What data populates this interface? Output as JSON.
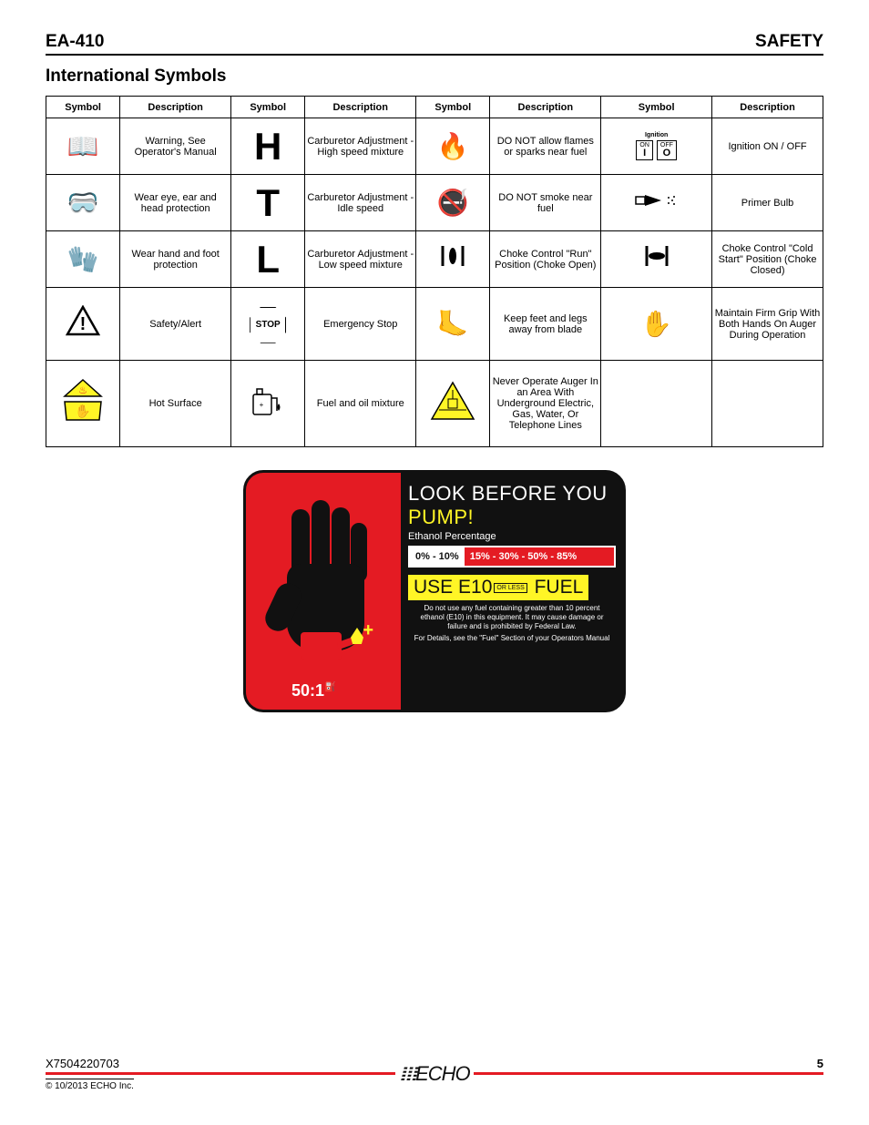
{
  "header": {
    "left": "EA-410",
    "right": "SAFETY"
  },
  "section_title": "International Symbols",
  "table": {
    "headers": [
      "Symbol",
      "Description",
      "Symbol",
      "Description",
      "Symbol",
      "Description",
      "Symbol",
      "Description"
    ],
    "rows": [
      {
        "cells": [
          {
            "t": "sym",
            "v": "📖"
          },
          {
            "t": "desc",
            "v": "Warning, See Operator's Manual"
          },
          {
            "t": "big",
            "v": "H"
          },
          {
            "t": "desc",
            "v": "Carburetor Adjustment - High speed mixture"
          },
          {
            "t": "sym",
            "v": "🔥"
          },
          {
            "t": "desc",
            "v": "DO NOT allow flames or sparks near fuel"
          },
          {
            "t": "ign",
            "v": ""
          },
          {
            "t": "desc",
            "v": "Ignition ON / OFF"
          }
        ]
      },
      {
        "cells": [
          {
            "t": "sym",
            "v": "🥽"
          },
          {
            "t": "desc",
            "v": "Wear eye, ear and head protection"
          },
          {
            "t": "big",
            "v": "T"
          },
          {
            "t": "desc",
            "v": "Carburetor Adjustment - Idle speed"
          },
          {
            "t": "sym",
            "v": "🚭"
          },
          {
            "t": "desc",
            "v": "DO NOT smoke near fuel"
          },
          {
            "t": "primer",
            "v": ""
          },
          {
            "t": "desc",
            "v": "Primer Bulb"
          }
        ]
      },
      {
        "cells": [
          {
            "t": "sym",
            "v": "🧤"
          },
          {
            "t": "desc",
            "v": "Wear hand and foot protection"
          },
          {
            "t": "big",
            "v": "L"
          },
          {
            "t": "desc",
            "v": "Carburetor Adjustment - Low speed mixture"
          },
          {
            "t": "choke1",
            "v": ""
          },
          {
            "t": "desc",
            "v": "Choke Control \"Run\" Position (Choke Open)"
          },
          {
            "t": "choke2",
            "v": ""
          },
          {
            "t": "desc",
            "v": "Choke Control \"Cold Start\" Position (Choke Closed)"
          }
        ]
      },
      {
        "tall": true,
        "cells": [
          {
            "t": "warn",
            "v": ""
          },
          {
            "t": "desc",
            "v": "Safety/Alert"
          },
          {
            "t": "stop",
            "v": "STOP"
          },
          {
            "t": "desc",
            "v": "Emergency Stop"
          },
          {
            "t": "sym",
            "v": "🦶"
          },
          {
            "t": "desc",
            "v": "Keep feet and legs away from blade"
          },
          {
            "t": "sym",
            "v": "✋"
          },
          {
            "t": "desc",
            "v": "Maintain Firm Grip With Both Hands On Auger During Operation"
          }
        ]
      },
      {
        "vtall": true,
        "cells": [
          {
            "t": "hot",
            "v": ""
          },
          {
            "t": "desc",
            "v": "Hot Surface"
          },
          {
            "t": "fuel",
            "v": ""
          },
          {
            "t": "desc",
            "v": "Fuel and oil mixture"
          },
          {
            "t": "ug",
            "v": ""
          },
          {
            "t": "desc",
            "v": "Never Operate Auger In an Area With Underground Electric, Gas, Water, Or Telephone Lines"
          },
          {
            "t": "empty",
            "v": ""
          },
          {
            "t": "empty",
            "v": ""
          }
        ]
      }
    ]
  },
  "label": {
    "look": "LOOK BEFORE YOU ",
    "pump": "PUMP!",
    "ethanol": "Ethanol Percentage",
    "ok_pct": "0% - 10%",
    "bad_pct": "15% - 30% - 50% - 85%",
    "use_a": "USE E10",
    "orless": "OR LESS",
    "use_b": " FUEL",
    "fine1": "Do not use any fuel containing greater than 10 percent ethanol (E10) in this equipment. It may cause damage or failure and is prohibited by Federal Law.",
    "fine2": "For Details, see the \"Fuel\" Section of your Operators Manual",
    "ratio": "50:1"
  },
  "footer": {
    "partno": "X7504220703",
    "page": "5",
    "copyright": "© 10/2013 ECHO Inc.",
    "logo": "ECHO"
  },
  "ign": {
    "title": "Ignition",
    "on": "ON",
    "off": "OFF",
    "i": "I",
    "o": "O"
  },
  "colors": {
    "red": "#e41b23",
    "yellow": "#fff526",
    "black": "#111111"
  }
}
